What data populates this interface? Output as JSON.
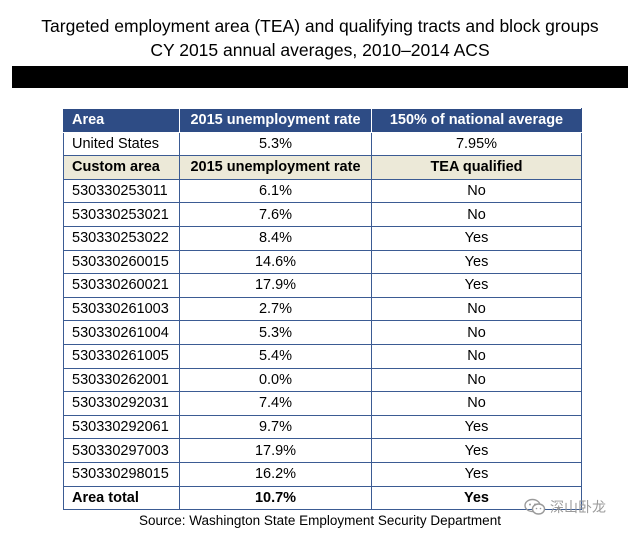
{
  "title": {
    "line1": "Targeted employment area (TEA) and qualifying tracts and block groups",
    "line2": "CY 2015 annual averages, 2010–2014 ACS"
  },
  "table": {
    "header": [
      "Area",
      "2015 unemployment rate",
      "150% of national average"
    ],
    "national_row": [
      "United States",
      "5.3%",
      "7.95%"
    ],
    "subheader": [
      "Custom area",
      "2015 unemployment rate",
      "TEA qualified"
    ],
    "rows": [
      [
        "530330253011",
        "6.1%",
        "No"
      ],
      [
        "530330253021",
        "7.6%",
        "No"
      ],
      [
        "530330253022",
        "8.4%",
        "Yes"
      ],
      [
        "530330260015",
        "14.6%",
        "Yes"
      ],
      [
        "530330260021",
        "17.9%",
        "Yes"
      ],
      [
        "530330261003",
        "2.7%",
        "No"
      ],
      [
        "530330261004",
        "5.3%",
        "No"
      ],
      [
        "530330261005",
        "5.4%",
        "No"
      ],
      [
        "530330262001",
        "0.0%",
        "No"
      ],
      [
        "530330292031",
        "7.4%",
        "No"
      ],
      [
        "530330292061",
        "9.7%",
        "Yes"
      ],
      [
        "530330297003",
        "17.9%",
        "Yes"
      ],
      [
        "530330298015",
        "16.2%",
        "Yes"
      ]
    ],
    "total_row": [
      "Area total",
      "10.7%",
      "Yes"
    ]
  },
  "source": "Source: Washington State Employment Security Department",
  "watermark": {
    "text": "深山卧龙",
    "icon": "wechat-icon"
  },
  "colors": {
    "header_bg": "#2e4c85",
    "subheader_bg": "#ece9d8",
    "border": "#3b5b93",
    "bar": "#000000"
  }
}
